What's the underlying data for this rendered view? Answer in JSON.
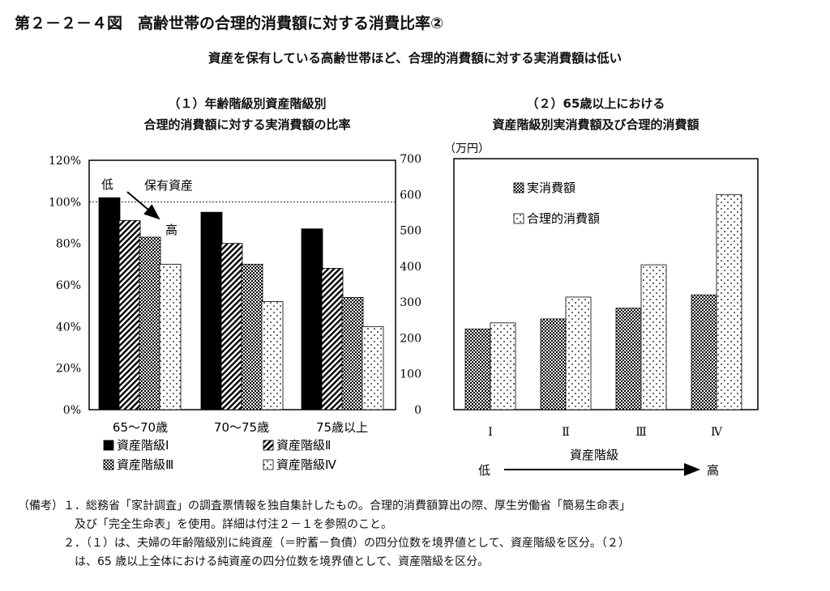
{
  "title": "第２－２－４図　高齢世帯の合理的消費額に対する消費比率②",
  "subtitle": "資産を保有している高齢世帯ほど、合理的消費額に対する実消費額は低い",
  "chart_data": [
    {
      "type": "bar",
      "title_lines": [
        "（１）年齢階級別資産階級別",
        "合理的消費額に対する実消費額の比率"
      ],
      "categories": [
        "65～70歳",
        "70～75歳",
        "75歳以上"
      ],
      "series": [
        {
          "name": "資産階級Ⅰ",
          "values": [
            102,
            95,
            87
          ],
          "fill": "black"
        },
        {
          "name": "資産階級Ⅱ",
          "values": [
            91,
            80,
            68
          ],
          "fill": "diagonal-hatch"
        },
        {
          "name": "資産階級Ⅲ",
          "values": [
            83,
            70,
            54
          ],
          "fill": "checker"
        },
        {
          "name": "資産階級Ⅳ",
          "values": [
            70,
            52,
            40
          ],
          "fill": "sparse-dots"
        }
      ],
      "yticks": [
        "0%",
        "20%",
        "40%",
        "60%",
        "80%",
        "100%",
        "120%"
      ],
      "ylim": [
        0,
        120
      ],
      "reference_line": 100,
      "annotations": {
        "low": "低",
        "high": "高",
        "asset_label": "保有資産"
      },
      "legend_position": "bottom"
    },
    {
      "type": "bar",
      "title_lines": [
        "（２）65歳以上における",
        "資産階級別実消費額及び合理的消費額"
      ],
      "unit": "（万円）",
      "categories": [
        "Ⅰ",
        "Ⅱ",
        "Ⅲ",
        "Ⅳ"
      ],
      "series": [
        {
          "name": "実消費額",
          "values": [
            225,
            253,
            283,
            320
          ],
          "fill": "checker"
        },
        {
          "name": "合理的消費額",
          "values": [
            242,
            314,
            404,
            600
          ],
          "fill": "sparse-dots"
        }
      ],
      "yticks": [
        "0",
        "100",
        "200",
        "300",
        "400",
        "500",
        "600",
        "700"
      ],
      "ylim": [
        0,
        700
      ],
      "xlabel": "資産階級",
      "axis_arrow": {
        "low": "低",
        "high": "高"
      },
      "legend_position": "top-right"
    }
  ],
  "notes": [
    "（備考）１．総務省「家計調査」の調査票情報を独自集計したもの。合理的消費額算出の際、厚生労働省「簡易生命表」",
    "　　　　　及び「完全生命表」を使用。詳細は付注２－１を参照のこと。",
    "　　　　２．（１）は、夫婦の年齢階級別に純資産（＝貯蓄－負債）の四分位数を境界値として、資産階級を区分。（２）",
    "　　　　　は、65 歳以上全体における純資産の四分位数を境界値として、資産階級を区分。"
  ]
}
